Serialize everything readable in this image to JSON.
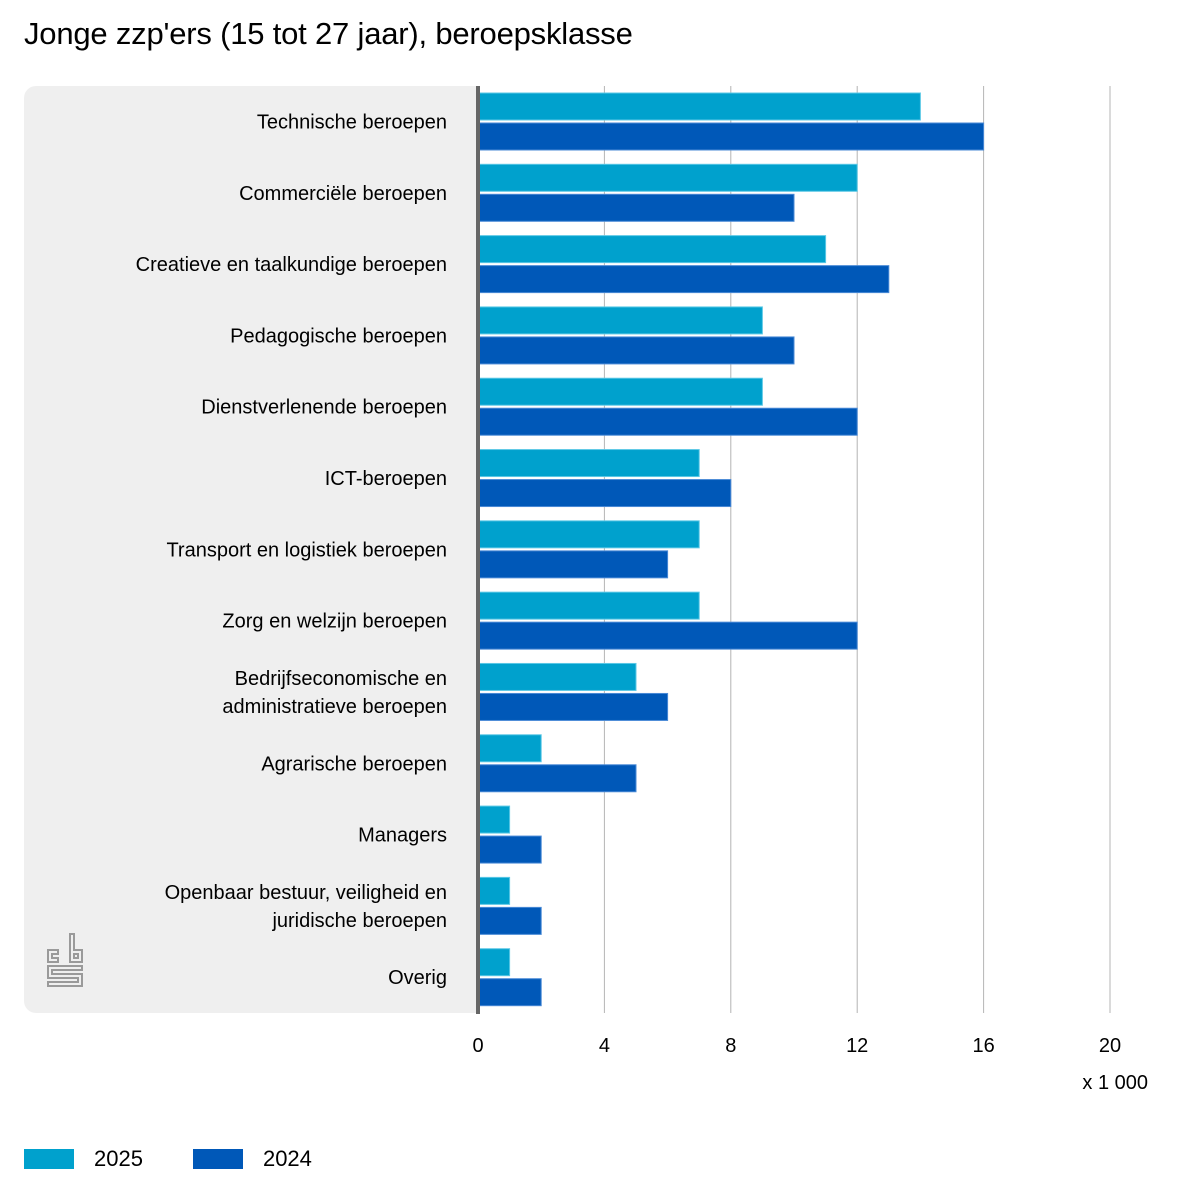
{
  "chart_data": {
    "type": "bar",
    "orientation": "horizontal",
    "title": "Jonge zzp'ers (15 tot 27 jaar), beroepsklasse",
    "xlabel": "",
    "ylabel": "",
    "unit_label": "x 1 000",
    "xlim": [
      0,
      20
    ],
    "xticks": [
      0,
      4,
      8,
      12,
      16,
      20
    ],
    "grid": true,
    "legend_position": "bottom-left",
    "categories": [
      [
        "Technische beroepen"
      ],
      [
        "Commerciële beroepen"
      ],
      [
        "Creatieve en taalkundige beroepen"
      ],
      [
        "Pedagogische beroepen"
      ],
      [
        "Dienstverlenende beroepen"
      ],
      [
        "ICT-beroepen"
      ],
      [
        "Transport en logistiek beroepen"
      ],
      [
        "Zorg en welzijn beroepen"
      ],
      [
        "Bedrijfseconomische en",
        "administratieve beroepen"
      ],
      [
        "Agrarische beroepen"
      ],
      [
        "Managers"
      ],
      [
        "Openbaar bestuur, veiligheid en",
        "juridische beroepen"
      ],
      [
        "Overig"
      ]
    ],
    "series": [
      {
        "name": "2025",
        "color": "#00a1cd",
        "values": [
          14,
          12,
          11,
          9,
          9,
          7,
          7,
          7,
          5,
          2,
          1,
          1,
          1
        ]
      },
      {
        "name": "2024",
        "color": "#0058b8",
        "values": [
          16,
          10,
          13,
          10,
          12,
          8,
          6,
          12,
          6,
          5,
          2,
          2,
          2
        ]
      }
    ]
  },
  "logo": {
    "icon": "cbs-logo-icon",
    "label": "cbs"
  }
}
